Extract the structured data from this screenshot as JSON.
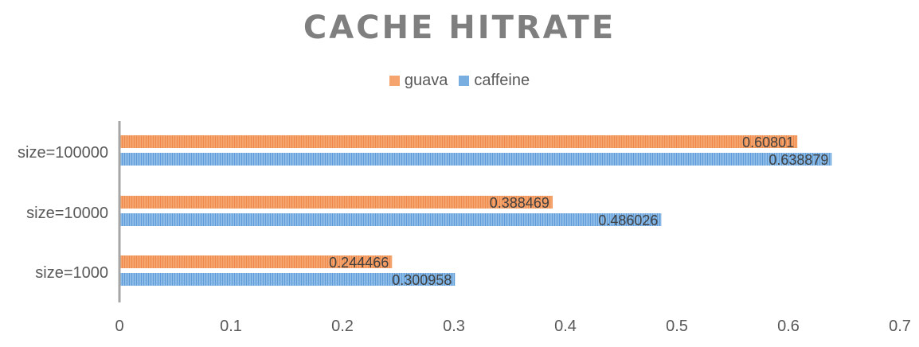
{
  "chart_data": {
    "type": "bar",
    "orientation": "horizontal",
    "title": "CACHE HITRATE",
    "categories": [
      "size=100000",
      "size=10000",
      "size=1000"
    ],
    "series": [
      {
        "name": "guava",
        "values": [
          0.60801,
          0.388469,
          0.244466
        ],
        "labels": [
          "0.60801",
          "0.388469",
          "0.244466"
        ],
        "color": "#f4a46c"
      },
      {
        "name": "caffeine",
        "values": [
          0.638879,
          0.486026,
          0.300958
        ],
        "labels": [
          "0.638879",
          "0.486026",
          "0.300958"
        ],
        "color": "#79aee0"
      }
    ],
    "xlim": [
      0,
      0.7
    ],
    "xticks": [
      "0",
      "0.1",
      "0.2",
      "0.3",
      "0.4",
      "0.5",
      "0.6",
      "0.7"
    ],
    "xtick_values": [
      0,
      0.1,
      0.2,
      0.3,
      0.4,
      0.5,
      0.6,
      0.7
    ],
    "legend_position": "top",
    "grid": false
  }
}
